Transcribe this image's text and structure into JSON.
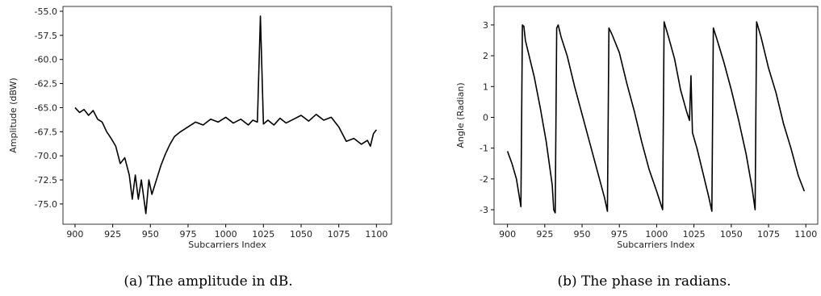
{
  "chart_data": [
    {
      "type": "line",
      "xlabel": "Subcarriers Index",
      "ylabel": "Amplitude (dBW)",
      "caption": "(a) The amplitude in dB.",
      "color": "#000000",
      "x": [
        900,
        903,
        906,
        909,
        912,
        915,
        918,
        921,
        924,
        927,
        930,
        933,
        936,
        938,
        940,
        942,
        944,
        946,
        947,
        949,
        951,
        953,
        955,
        957,
        960,
        963,
        966,
        970,
        975,
        980,
        985,
        990,
        995,
        1000,
        1005,
        1010,
        1015,
        1018,
        1021,
        1023,
        1025,
        1028,
        1032,
        1036,
        1040,
        1045,
        1050,
        1055,
        1060,
        1065,
        1070,
        1075,
        1080,
        1085,
        1090,
        1094,
        1096,
        1098,
        1100
      ],
      "values": [
        -65,
        -65.5,
        -65.2,
        -65.8,
        -65.3,
        -66.2,
        -66.5,
        -67.5,
        -68.2,
        -69,
        -70.8,
        -70.2,
        -72,
        -74.5,
        -72,
        -74.5,
        -72.5,
        -74.8,
        -76,
        -72.5,
        -74,
        -73,
        -72,
        -71,
        -69.8,
        -68.8,
        -68,
        -67.5,
        -67,
        -66.5,
        -66.8,
        -66.2,
        -66.5,
        -66,
        -66.6,
        -66.2,
        -66.8,
        -66.3,
        -66.5,
        -55.5,
        -66.7,
        -66.3,
        -66.8,
        -66.1,
        -66.6,
        -66.2,
        -65.8,
        -66.4,
        -65.7,
        -66.3,
        -66,
        -67,
        -68.5,
        -68.2,
        -68.8,
        -68.4,
        -69,
        -67.7,
        -67.3
      ],
      "xlim": [
        892,
        1110
      ],
      "ylim": [
        -77.1,
        -54.5
      ],
      "xticks": [
        900,
        925,
        950,
        975,
        1000,
        1025,
        1050,
        1075,
        1100
      ],
      "yticks": [
        {
          "value": -55,
          "label": "-55.0"
        },
        -57.5,
        {
          "value": -60,
          "label": "-60.0"
        },
        -62.5,
        {
          "value": -65,
          "label": "-65.0"
        },
        -67.5,
        {
          "value": -70,
          "label": "-70.0"
        },
        -72.5,
        {
          "value": -75,
          "label": "-75.0"
        }
      ]
    },
    {
      "type": "line",
      "xlabel": "Subcarriers Index",
      "ylabel": "Angle (Radian)",
      "caption": "(b) The phase in radians.",
      "color": "#000000",
      "x": [
        900,
        903,
        906,
        908,
        909,
        910,
        911,
        912,
        914,
        918,
        922,
        926,
        930,
        931,
        932,
        933,
        934,
        936,
        940,
        945,
        950,
        955,
        960,
        965,
        967,
        968,
        970,
        975,
        980,
        985,
        990,
        995,
        1000,
        1004,
        1005,
        1008,
        1012,
        1016,
        1020,
        1022,
        1023,
        1024,
        1027,
        1031,
        1035,
        1037,
        1038,
        1040,
        1045,
        1050,
        1055,
        1060,
        1064,
        1066,
        1067,
        1070,
        1075,
        1080,
        1085,
        1090,
        1095,
        1099
      ],
      "values": [
        -1.1,
        -1.5,
        -2.0,
        -2.6,
        -2.9,
        3.0,
        2.95,
        2.5,
        2.1,
        1.3,
        0.3,
        -0.8,
        -2.2,
        -3.0,
        -3.1,
        2.9,
        3.0,
        2.6,
        2.0,
        1.0,
        0.1,
        -0.8,
        -1.7,
        -2.6,
        -3.05,
        2.9,
        2.7,
        2.1,
        1.1,
        0.2,
        -0.8,
        -1.7,
        -2.4,
        -3.0,
        3.1,
        2.6,
        1.9,
        0.9,
        0.2,
        -0.1,
        1.35,
        -0.5,
        -1.0,
        -1.8,
        -2.6,
        -3.05,
        2.9,
        2.6,
        1.8,
        0.9,
        -0.1,
        -1.2,
        -2.3,
        -3.0,
        3.1,
        2.6,
        1.6,
        0.8,
        -0.2,
        -1.0,
        -1.9,
        -2.4
      ],
      "xlim": [
        891,
        1108
      ],
      "ylim": [
        -3.47,
        3.6
      ],
      "xticks": [
        900,
        925,
        950,
        975,
        1000,
        1025,
        1050,
        1075,
        1100
      ],
      "yticks": [
        3,
        2,
        1,
        0,
        -1,
        -2,
        -3
      ]
    }
  ]
}
